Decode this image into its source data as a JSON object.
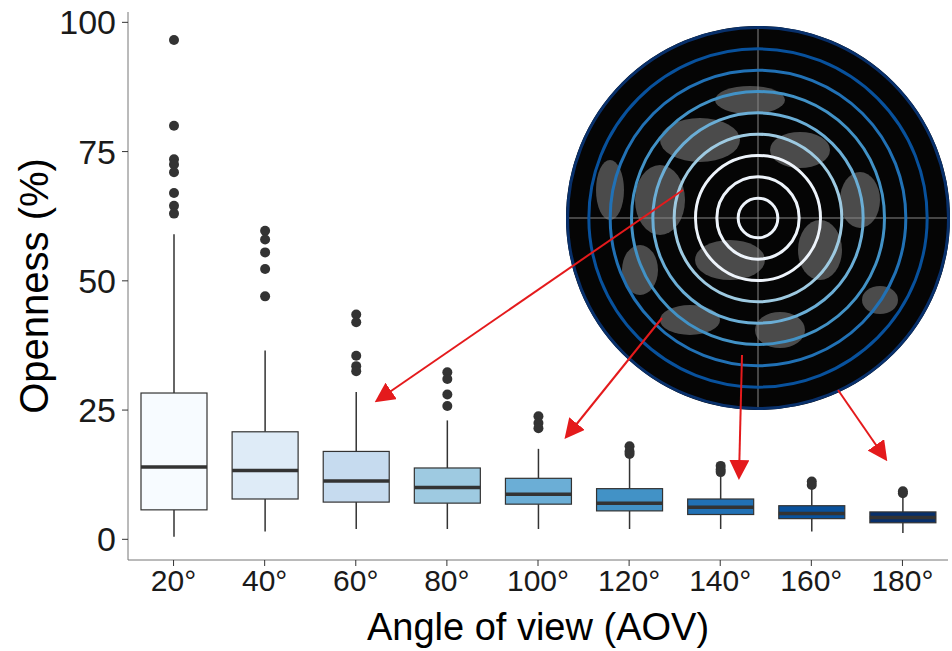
{
  "chart_data": {
    "type": "box",
    "x_label": "Angle of view (AOV)",
    "y_label": "Openness (%)",
    "categories": [
      "20°",
      "40°",
      "60°",
      "80°",
      "100°",
      "120°",
      "140°",
      "160°",
      "180°"
    ],
    "whisker_low": [
      0.5,
      1.5,
      2,
      2,
      2,
      2,
      2,
      1.5,
      1.2
    ],
    "q1": [
      5.7,
      7.8,
      7.2,
      7,
      6.8,
      5.5,
      4.8,
      4,
      3.2
    ],
    "median": [
      14,
      13.3,
      11.3,
      10,
      8.7,
      7,
      6.2,
      5,
      4.2
    ],
    "q3": [
      28.3,
      20.8,
      17,
      13.8,
      11.8,
      9.8,
      7.8,
      6.5,
      5.3
    ],
    "whisker_high": [
      59,
      36.5,
      28.5,
      23,
      17.5,
      15.8,
      12.5,
      10,
      8.5
    ],
    "outliers": [
      [
        96.6,
        80,
        73.5,
        72.5,
        71,
        67,
        64.5,
        63
      ],
      [
        59.7,
        58,
        55.5,
        52.3,
        47
      ],
      [
        43.5,
        42,
        35.5,
        33.5,
        32.5
      ],
      [
        32.3,
        31,
        28,
        25.8
      ],
      [
        23.8,
        22.5,
        21.5
      ],
      [
        18,
        17,
        16.5
      ],
      [
        14.2,
        13.5,
        13
      ],
      [
        11.2,
        10.5
      ],
      [
        9.3,
        8.9
      ]
    ],
    "colors": [
      "#f7fbff",
      "#deebf7",
      "#c6dbef",
      "#9ecae1",
      "#6baed6",
      "#4292c6",
      "#2171b5",
      "#08519c",
      "#08306b"
    ],
    "ylim": [
      -4,
      102
    ],
    "yticks": [
      0,
      25,
      50,
      75,
      100
    ],
    "grid": false
  }
}
